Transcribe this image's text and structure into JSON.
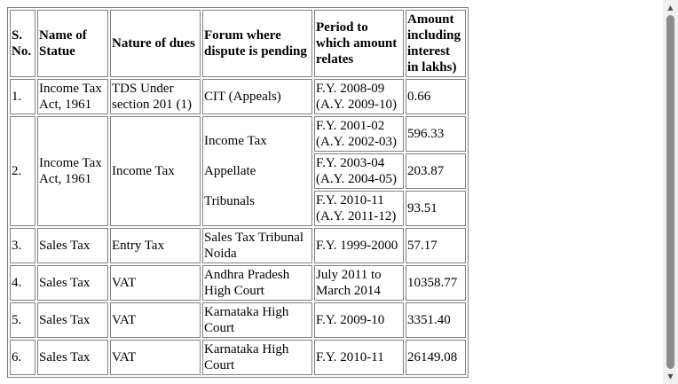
{
  "table": {
    "headers": {
      "no": "S. No.",
      "statute": "Name of Statue",
      "nature": "Nature of dues",
      "forum": "Forum where dispute is pending",
      "period": "Period to which amount relates",
      "amount": "Amount including interest in lakhs)"
    },
    "rows": [
      {
        "no": "1.",
        "statute": "Income Tax Act, 1961",
        "nature": "TDS Under section 201 (1)",
        "forum": "CIT (Appeals)",
        "period": "F.Y. 2008-09 (A.Y. 2009-10)",
        "amount": "0.66"
      },
      {
        "no": "2.",
        "statute": "Income Tax Act, 1961",
        "nature": "Income Tax",
        "forum_lines": [
          "Income Tax",
          "Appellate",
          "Tribunals"
        ],
        "periods": [
          {
            "period": "F.Y. 2001-02 (A.Y. 2002-03)",
            "amount": "596.33"
          },
          {
            "period": "F.Y. 2003-04 (A.Y. 2004-05)",
            "amount": "203.87"
          },
          {
            "period": "F.Y. 2010-11 (A.Y. 2011-12)",
            "amount": "93.51"
          }
        ]
      },
      {
        "no": "3.",
        "statute": "Sales Tax",
        "nature": "Entry Tax",
        "forum": "Sales Tax Tribunal Noida",
        "period": "F.Y. 1999-2000",
        "amount": "57.17"
      },
      {
        "no": "4.",
        "statute": "Sales Tax",
        "nature": "VAT",
        "forum": "Andhra Pradesh High Court",
        "period": "July 2011 to March 2014",
        "amount": "10358.77"
      },
      {
        "no": "5.",
        "statute": "Sales Tax",
        "nature": "VAT",
        "forum": "Karnataka High Court",
        "period": "F.Y. 2009-10",
        "amount": "3351.40"
      },
      {
        "no": "6.",
        "statute": "Sales Tax",
        "nature": "VAT",
        "forum": "Karnataka High Court",
        "period": "F.Y. 2010-11",
        "amount": "26149.08"
      }
    ]
  },
  "scrollbar": {
    "up_icon": "chevron-up-icon",
    "down_icon": "chevron-down-icon"
  }
}
